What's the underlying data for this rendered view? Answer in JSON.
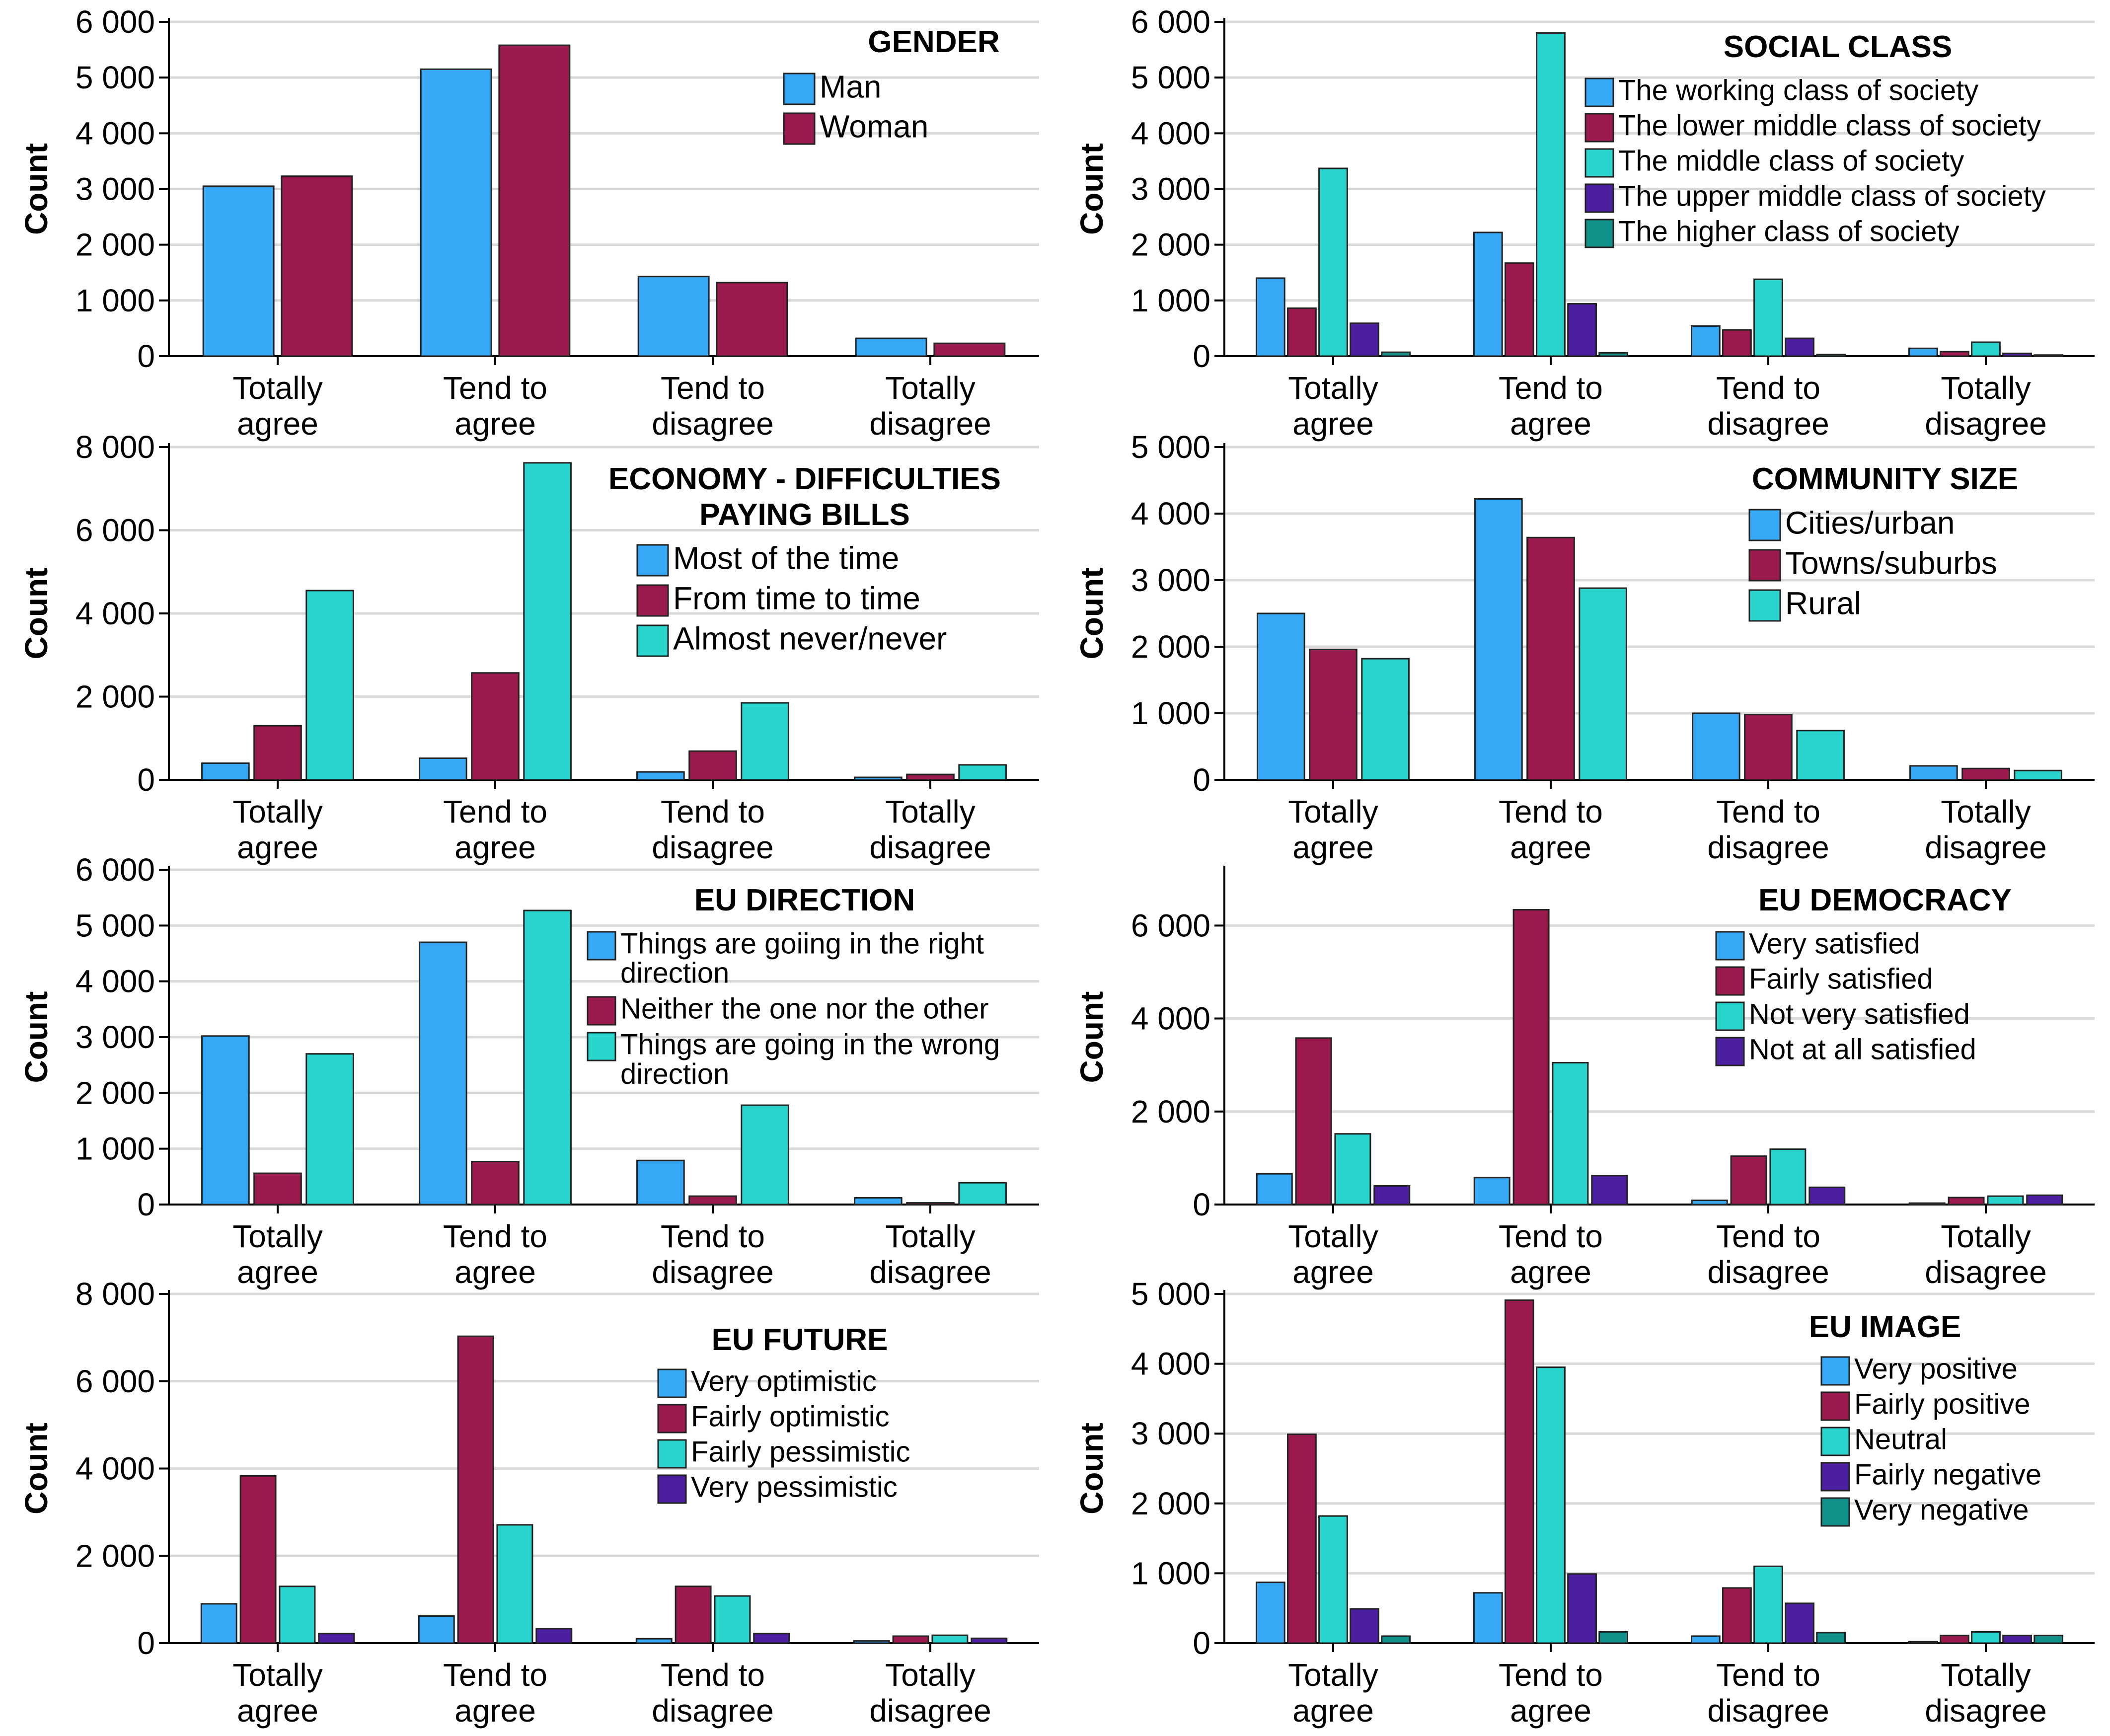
{
  "category_labels": [
    [
      "Totally",
      "agree"
    ],
    [
      "Tend to",
      "agree"
    ],
    [
      "Tend to",
      "disagree"
    ],
    [
      "Totally",
      "disagree"
    ]
  ],
  "colors": {
    "blue": "#36a8f5",
    "crimson": "#9b1a4d",
    "turquoise": "#29d4cd",
    "purple": "#4c1fa0",
    "teal": "#12908a"
  },
  "chart_data": [
    {
      "type": "bar",
      "title": [
        "GENDER"
      ],
      "xlabel": "",
      "ylabel": "Count",
      "categories": [
        "Totally agree",
        "Tend to agree",
        "Tend to disagree",
        "Totally disagree"
      ],
      "ylim": [
        0,
        6000
      ],
      "yticks": [
        0,
        1000,
        2000,
        3000,
        4000,
        5000,
        6000
      ],
      "ytick_labels": [
        "0",
        "1 000",
        "2 000",
        "3 000",
        "4 000",
        "5 000",
        "6 000"
      ],
      "legend_position": "top-right",
      "series": [
        {
          "name": "Man",
          "color": "#36a8f5",
          "values": [
            3050,
            5150,
            1430,
            320
          ]
        },
        {
          "name": "Woman",
          "color": "#9b1a4d",
          "values": [
            3230,
            5580,
            1320,
            230
          ]
        }
      ]
    },
    {
      "type": "bar",
      "title": [
        "SOCIAL CLASS"
      ],
      "xlabel": "",
      "ylabel": "Count",
      "categories": [
        "Totally agree",
        "Tend to agree",
        "Tend to disagree",
        "Totally disagree"
      ],
      "ylim": [
        0,
        6000
      ],
      "yticks": [
        0,
        1000,
        2000,
        3000,
        4000,
        5000,
        6000
      ],
      "ytick_labels": [
        "0",
        "1 000",
        "2 000",
        "3 000",
        "4 000",
        "5 000",
        "6 000"
      ],
      "legend_position": "top-right",
      "series": [
        {
          "name": "The working class of society",
          "color": "#36a8f5",
          "values": [
            1400,
            2220,
            540,
            140
          ]
        },
        {
          "name": "The lower middle class of society",
          "color": "#9b1a4d",
          "values": [
            860,
            1670,
            470,
            80
          ]
        },
        {
          "name": "The middle class of society",
          "color": "#29d4cd",
          "values": [
            3370,
            5800,
            1380,
            250
          ]
        },
        {
          "name": "The upper middle class of society",
          "color": "#4c1fa0",
          "values": [
            590,
            940,
            320,
            50
          ]
        },
        {
          "name": "The higher class of society",
          "color": "#12908a",
          "values": [
            70,
            60,
            30,
            20
          ]
        }
      ]
    },
    {
      "type": "bar",
      "title": [
        "ECONOMY - DIFFICULTIES",
        "PAYING BILLS"
      ],
      "xlabel": "",
      "ylabel": "Count",
      "categories": [
        "Totally agree",
        "Tend to agree",
        "Tend to disagree",
        "Totally disagree"
      ],
      "ylim": [
        0,
        8000
      ],
      "yticks": [
        0,
        2000,
        4000,
        6000,
        8000
      ],
      "ytick_labels": [
        "0",
        "2 000",
        "4 000",
        "6 000",
        "8 000"
      ],
      "legend_position": "top-right",
      "series": [
        {
          "name": "Most of the time",
          "color": "#36a8f5",
          "values": [
            400,
            520,
            190,
            60
          ]
        },
        {
          "name": "From time to time",
          "color": "#9b1a4d",
          "values": [
            1300,
            2570,
            690,
            130
          ]
        },
        {
          "name": "Almost never/never",
          "color": "#29d4cd",
          "values": [
            4550,
            7620,
            1850,
            360
          ]
        }
      ]
    },
    {
      "type": "bar",
      "title": [
        "COMMUNITY SIZE"
      ],
      "xlabel": "",
      "ylabel": "Count",
      "categories": [
        "Totally agree",
        "Tend to agree",
        "Tend to disagree",
        "Totally disagree"
      ],
      "ylim": [
        0,
        5000
      ],
      "yticks": [
        0,
        1000,
        2000,
        3000,
        4000,
        5000
      ],
      "ytick_labels": [
        "0",
        "1 000",
        "2 000",
        "3 000",
        "4 000",
        "5 000"
      ],
      "legend_position": "top-right",
      "series": [
        {
          "name": "Cities/urban",
          "color": "#36a8f5",
          "values": [
            2500,
            4220,
            1000,
            210
          ]
        },
        {
          "name": "Towns/suburbs",
          "color": "#9b1a4d",
          "values": [
            1960,
            3640,
            980,
            170
          ]
        },
        {
          "name": "Rural",
          "color": "#29d4cd",
          "values": [
            1820,
            2880,
            740,
            140
          ]
        }
      ]
    },
    {
      "type": "bar",
      "title": [
        "EU DIRECTION"
      ],
      "xlabel": "",
      "ylabel": "Count",
      "categories": [
        "Totally agree",
        "Tend to agree",
        "Tend to disagree",
        "Totally disagree"
      ],
      "ylim": [
        0,
        6000
      ],
      "yticks": [
        0,
        1000,
        2000,
        3000,
        4000,
        5000,
        6000
      ],
      "ytick_labels": [
        "0",
        "1 000",
        "2 000",
        "3 000",
        "4 000",
        "5 000",
        "6 000"
      ],
      "legend_position": "top-right",
      "series": [
        {
          "name": "Things are goiing in the right direction",
          "legend_lines": [
            "Things are goiing in the right",
            "direction"
          ],
          "color": "#36a8f5",
          "values": [
            3020,
            4700,
            790,
            120
          ]
        },
        {
          "name": "Neither the one nor the other",
          "legend_lines": [
            "Neither the one nor the other"
          ],
          "color": "#9b1a4d",
          "values": [
            560,
            770,
            150,
            30
          ]
        },
        {
          "name": "Things are going in the wrong direction",
          "legend_lines": [
            "Things are going in the wrong",
            "direction"
          ],
          "color": "#29d4cd",
          "values": [
            2700,
            5270,
            1780,
            390
          ]
        }
      ]
    },
    {
      "type": "bar",
      "title": [
        "EU DEMOCRACY"
      ],
      "xlabel": "",
      "ylabel": "Count",
      "categories": [
        "Totally agree",
        "Tend to agree",
        "Tend to disagree",
        "Totally disagree"
      ],
      "ylim": [
        0,
        7200
      ],
      "yticks": [
        0,
        2000,
        4000,
        6000
      ],
      "ytick_labels": [
        "0",
        "2 000",
        "4 000",
        "6 000"
      ],
      "legend_position": "top-right",
      "series": [
        {
          "name": "Very satisfied",
          "color": "#36a8f5",
          "values": [
            660,
            580,
            90,
            30
          ]
        },
        {
          "name": "Fairly satisfied",
          "color": "#9b1a4d",
          "values": [
            3580,
            6340,
            1040,
            150
          ]
        },
        {
          "name": "Not very satisfied",
          "color": "#29d4cd",
          "values": [
            1520,
            3050,
            1190,
            180
          ]
        },
        {
          "name": "Not at all satisfied",
          "color": "#4c1fa0",
          "values": [
            400,
            620,
            370,
            200
          ]
        }
      ]
    },
    {
      "type": "bar",
      "title": [
        "EU FUTURE"
      ],
      "xlabel": "",
      "ylabel": "Count",
      "categories": [
        "Totally agree",
        "Tend to agree",
        "Tend to disagree",
        "Totally disagree"
      ],
      "ylim": [
        0,
        8000
      ],
      "yticks": [
        0,
        2000,
        4000,
        6000,
        8000
      ],
      "ytick_labels": [
        "0",
        "2 000",
        "4 000",
        "6 000",
        "8 000"
      ],
      "legend_position": "top-right",
      "series": [
        {
          "name": "Very optimistic",
          "color": "#36a8f5",
          "values": [
            900,
            620,
            100,
            50
          ]
        },
        {
          "name": "Fairly optimistic",
          "color": "#9b1a4d",
          "values": [
            3830,
            7030,
            1300,
            160
          ]
        },
        {
          "name": "Fairly pessimistic",
          "color": "#29d4cd",
          "values": [
            1300,
            2710,
            1080,
            180
          ]
        },
        {
          "name": "Very pessimistic",
          "color": "#4c1fa0",
          "values": [
            220,
            330,
            220,
            110
          ]
        }
      ]
    },
    {
      "type": "bar",
      "title": [
        "EU IMAGE"
      ],
      "xlabel": "",
      "ylabel": "Count",
      "categories": [
        "Totally agree",
        "Tend to agree",
        "Tend to disagree",
        "Totally disagree"
      ],
      "ylim": [
        0,
        5000
      ],
      "yticks": [
        0,
        1000,
        2000,
        3000,
        4000,
        5000
      ],
      "ytick_labels": [
        "0",
        "1 000",
        "2 000",
        "3 000",
        "4 000",
        "5 000"
      ],
      "legend_position": "top-right",
      "series": [
        {
          "name": "Very positive",
          "color": "#36a8f5",
          "values": [
            870,
            720,
            100,
            20
          ]
        },
        {
          "name": "Fairly positive",
          "color": "#9b1a4d",
          "values": [
            2990,
            4910,
            790,
            110
          ]
        },
        {
          "name": "Neutral",
          "color": "#29d4cd",
          "values": [
            1820,
            3950,
            1100,
            160
          ]
        },
        {
          "name": "Fairly negative",
          "color": "#4c1fa0",
          "values": [
            490,
            990,
            570,
            110
          ]
        },
        {
          "name": "Very negative",
          "color": "#12908a",
          "values": [
            100,
            160,
            150,
            110
          ]
        }
      ]
    }
  ]
}
